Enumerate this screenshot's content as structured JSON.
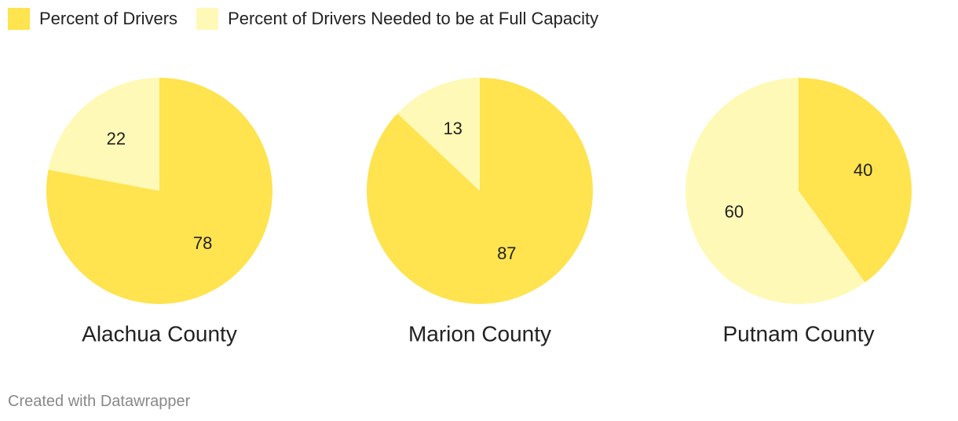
{
  "colors": {
    "drivers": "#ffe34f",
    "needed": "#fff9b7"
  },
  "legend": [
    {
      "label": "Percent of Drivers",
      "color": "#ffe34f"
    },
    {
      "label": "Percent of Drivers Needed to be at Full Capacity",
      "color": "#fff9b7"
    }
  ],
  "chart_data": [
    {
      "type": "pie",
      "title": "Alachua County",
      "slices": [
        {
          "name": "Percent of Drivers",
          "value": 78
        },
        {
          "name": "Percent of Drivers Needed to be at Full Capacity",
          "value": 22
        }
      ]
    },
    {
      "type": "pie",
      "title": "Marion County",
      "slices": [
        {
          "name": "Percent of Drivers",
          "value": 87
        },
        {
          "name": "Percent of Drivers Needed to be at Full Capacity",
          "value": 13
        }
      ]
    },
    {
      "type": "pie",
      "title": "Putnam County",
      "slices": [
        {
          "name": "Percent of Drivers",
          "value": 40
        },
        {
          "name": "Percent of Drivers Needed to be at Full Capacity",
          "value": 60
        }
      ]
    }
  ],
  "footer": "Created with Datawrapper"
}
